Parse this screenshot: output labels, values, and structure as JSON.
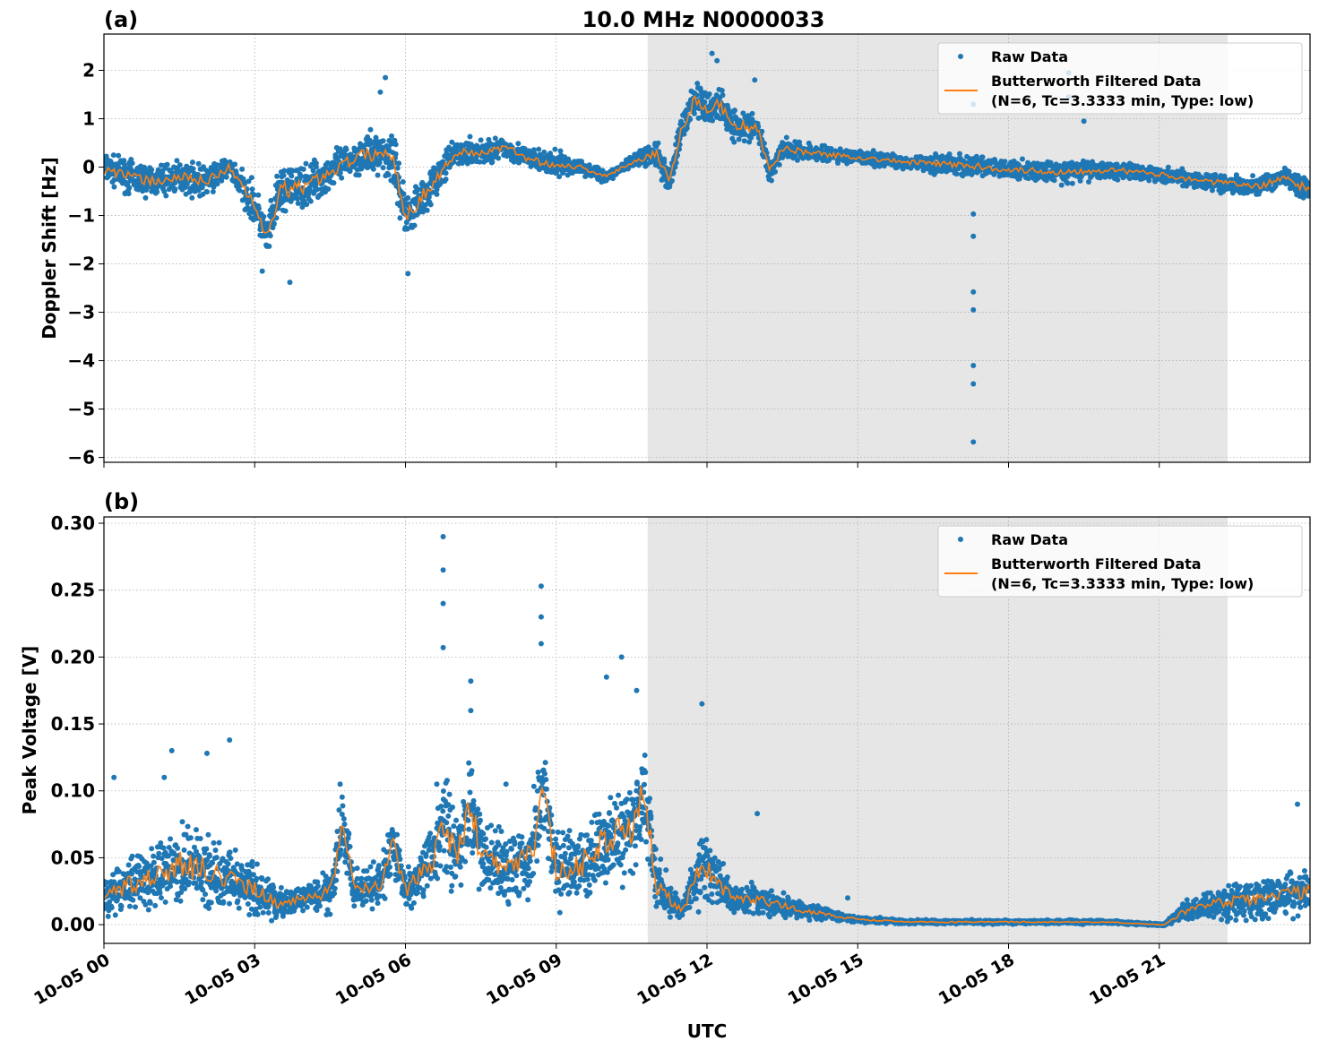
{
  "chart_data": [
    {
      "panel_label": "(a)",
      "title": "10.0 MHz N0000033",
      "type": "scatter+line",
      "ylabel": "Doppler Shift [Hz]",
      "xlabel": "",
      "ylim": [
        -6.1,
        2.75
      ],
      "yticks": [
        "2",
        "1",
        "0",
        "−1",
        "−2",
        "−3",
        "−4",
        "−5",
        "−6"
      ],
      "ytick_values": [
        2,
        1,
        0,
        -1,
        -2,
        -3,
        -4,
        -5,
        -6
      ],
      "grid": true,
      "legend": "top-right",
      "shaded_interval_hours": [
        10.82,
        22.36
      ],
      "legend_entries": {
        "raw": "Raw Data",
        "filtered_line1": "Butterworth Filtered Data",
        "filtered_line2": "(N=6, Tc=3.3333 min, Type: low)"
      },
      "filtered": {
        "hours": [
          0,
          0.5,
          1,
          1.5,
          2,
          2.5,
          3,
          3.25,
          3.5,
          4,
          4.5,
          5,
          5.5,
          5.75,
          6,
          6.5,
          7,
          7.5,
          8,
          8.5,
          9,
          9.5,
          10,
          10.5,
          11,
          11.25,
          11.5,
          11.75,
          12,
          12.25,
          12.5,
          13,
          13.25,
          13.5,
          14,
          15,
          16,
          17,
          18,
          19,
          20,
          21,
          22,
          23,
          23.5,
          24
        ],
        "values": [
          0,
          -0.2,
          -0.3,
          -0.2,
          -0.3,
          0,
          -0.8,
          -1.5,
          -0.5,
          -0.4,
          -0.1,
          0.2,
          0.3,
          0.2,
          -1,
          -0.4,
          0.3,
          0.3,
          0.4,
          0.15,
          0.05,
          0,
          -0.2,
          0.1,
          0.3,
          -0.3,
          0.8,
          1.4,
          1.2,
          1.3,
          0.9,
          0.8,
          -0.1,
          0.4,
          0.3,
          0.2,
          0.1,
          0.05,
          -0.05,
          -0.1,
          -0.05,
          -0.15,
          -0.3,
          -0.4,
          -0.2,
          -0.5
        ]
      },
      "raw_spread": [
        0.4,
        0.45,
        0.45,
        0.45,
        0.45,
        0.3,
        0.6,
        0.6,
        0.7,
        0.6,
        0.5,
        0.5,
        0.6,
        0.8,
        0.7,
        0.5,
        0.35,
        0.4,
        0.3,
        0.3,
        0.35,
        0.2,
        0.15,
        0.15,
        0.4,
        0.35,
        0.45,
        0.5,
        0.5,
        0.5,
        0.45,
        0.4,
        0.3,
        0.3,
        0.25,
        0.2,
        0.2,
        0.3,
        0.25,
        0.3,
        0.25,
        0.2,
        0.25,
        0.25,
        0.25,
        0.4
      ],
      "raw_outliers": [
        [
          5.6,
          1.85
        ],
        [
          5.5,
          1.55
        ],
        [
          12.1,
          2.35
        ],
        [
          12.2,
          2.2
        ],
        [
          12.95,
          1.8
        ],
        [
          17.3,
          1.3
        ],
        [
          17.3,
          -0.97
        ],
        [
          17.3,
          -1.43
        ],
        [
          17.3,
          -2.58
        ],
        [
          17.3,
          -2.95
        ],
        [
          17.3,
          -4.1
        ],
        [
          17.3,
          -4.48
        ],
        [
          17.3,
          -5.68
        ],
        [
          19.2,
          1.95
        ],
        [
          19.2,
          1.45
        ],
        [
          19.5,
          0.95
        ],
        [
          3.7,
          -2.38
        ],
        [
          6.05,
          -2.2
        ],
        [
          3.15,
          -2.15
        ]
      ]
    },
    {
      "panel_label": "(b)",
      "type": "scatter+line",
      "ylabel": "Peak Voltage [V]",
      "xlabel": "UTC",
      "ylim": [
        -0.014,
        0.3047
      ],
      "yticks": [
        "0.30",
        "0.25",
        "0.20",
        "0.15",
        "0.10",
        "0.05",
        "0.00"
      ],
      "ytick_values": [
        0.3,
        0.25,
        0.2,
        0.15,
        0.1,
        0.05,
        0
      ],
      "xticks": [
        "10-05 00",
        "10-05 03",
        "10-05 06",
        "10-05 09",
        "10-05 12",
        "10-05 15",
        "10-05 18",
        "10-05 21"
      ],
      "xtick_hours": [
        0,
        3,
        6,
        9,
        12,
        15,
        18,
        21
      ],
      "xlim_hours": [
        0,
        24
      ],
      "grid": true,
      "legend": "top-right",
      "shaded_interval_hours": [
        10.82,
        22.36
      ],
      "legend_entries": {
        "raw": "Raw Data",
        "filtered_line1": "Butterworth Filtered Data",
        "filtered_line2": "(N=6, Tc=3.3333 min, Type: low)"
      },
      "filtered": {
        "hours": [
          0,
          0.5,
          1,
          1.5,
          2,
          2.5,
          3,
          3.5,
          4,
          4.5,
          4.75,
          5,
          5.5,
          5.75,
          6,
          6.5,
          6.75,
          7,
          7.3,
          7.5,
          8,
          8.5,
          8.75,
          9,
          9.5,
          10,
          10.5,
          10.75,
          11,
          11.5,
          11.9,
          12.5,
          13,
          14,
          15,
          16,
          17,
          18,
          19,
          20,
          21,
          21.1,
          21.5,
          22,
          23,
          24
        ],
        "values": [
          0.02,
          0.03,
          0.035,
          0.045,
          0.04,
          0.035,
          0.025,
          0.015,
          0.02,
          0.025,
          0.07,
          0.025,
          0.03,
          0.06,
          0.025,
          0.045,
          0.08,
          0.05,
          0.09,
          0.05,
          0.045,
          0.05,
          0.1,
          0.04,
          0.045,
          0.065,
          0.07,
          0.1,
          0.03,
          0.01,
          0.045,
          0.02,
          0.018,
          0.01,
          0.004,
          0.002,
          0.002,
          0.002,
          0.002,
          0.002,
          0.0,
          0.0,
          0.01,
          0.015,
          0.02,
          0.025
        ]
      },
      "raw_spread": [
        0.02,
        0.03,
        0.03,
        0.04,
        0.04,
        0.03,
        0.03,
        0.015,
        0.015,
        0.02,
        0.04,
        0.02,
        0.02,
        0.03,
        0.02,
        0.035,
        0.06,
        0.04,
        0.06,
        0.04,
        0.035,
        0.04,
        0.07,
        0.035,
        0.04,
        0.05,
        0.05,
        0.05,
        0.03,
        0.008,
        0.04,
        0.015,
        0.015,
        0.008,
        0.003,
        0.002,
        0.002,
        0.002,
        0.002,
        0.002,
        0.001,
        0.001,
        0.01,
        0.015,
        0.02,
        0.02
      ],
      "raw_outliers": [
        [
          6.75,
          0.29
        ],
        [
          6.75,
          0.265
        ],
        [
          6.75,
          0.24
        ],
        [
          6.75,
          0.207
        ],
        [
          7.3,
          0.182
        ],
        [
          7.3,
          0.16
        ],
        [
          8.7,
          0.253
        ],
        [
          8.7,
          0.23
        ],
        [
          8.7,
          0.21
        ],
        [
          10.3,
          0.2
        ],
        [
          10.0,
          0.185
        ],
        [
          10.6,
          0.175
        ],
        [
          11.9,
          0.165
        ],
        [
          2.5,
          0.138
        ],
        [
          1.35,
          0.13
        ],
        [
          1.2,
          0.11
        ],
        [
          2.05,
          0.128
        ],
        [
          13.0,
          0.083
        ],
        [
          23.75,
          0.09
        ],
        [
          4.7,
          0.105
        ],
        [
          0.2,
          0.11
        ],
        [
          8.0,
          0.105
        ],
        [
          14.8,
          0.02
        ]
      ]
    }
  ],
  "colors": {
    "raw": "#1f77b4",
    "filtered": "#ff7f0e",
    "shade": "#e6e6e6",
    "grid": "#b0b0b0"
  }
}
